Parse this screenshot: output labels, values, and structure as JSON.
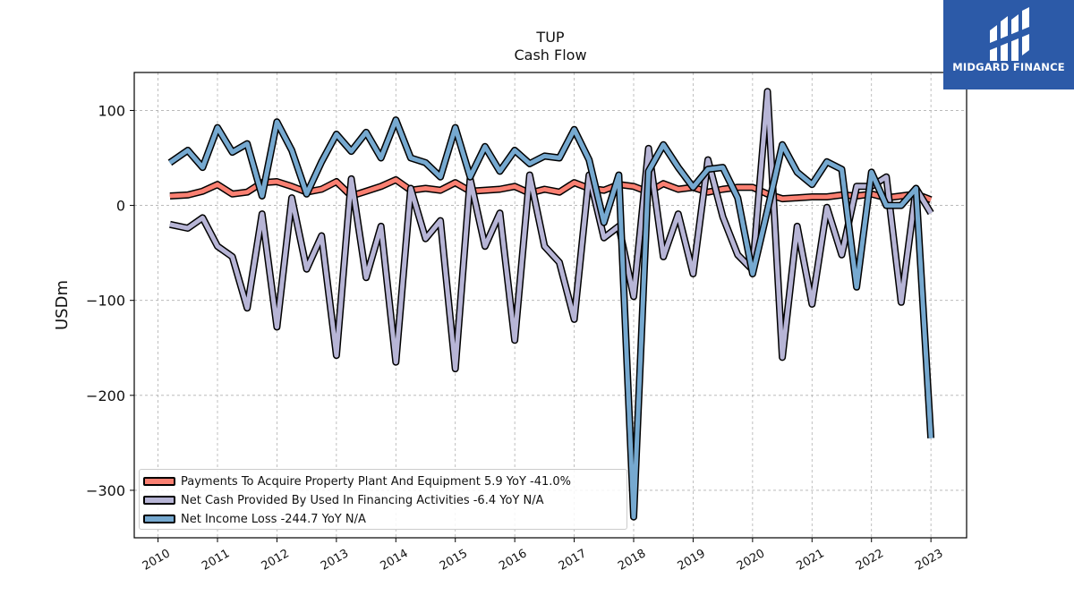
{
  "brand": {
    "name": "MIDGARD FINANCE",
    "color": "#2c5aa8"
  },
  "chart_data": {
    "type": "line",
    "title": "TUP",
    "subtitle": "Cash Flow",
    "xlabel": "",
    "ylabel": "USDm",
    "xlim": [
      2009.6,
      2023.6
    ],
    "ylim": [
      -350,
      140
    ],
    "x_ticks": [
      "2010",
      "2011",
      "2012",
      "2013",
      "2014",
      "2015",
      "2016",
      "2017",
      "2018",
      "2019",
      "2020",
      "2021",
      "2022",
      "2023"
    ],
    "y_ticks": [
      {
        "value": 100,
        "label": "100"
      },
      {
        "value": 0,
        "label": "0"
      },
      {
        "value": -100,
        "label": "−100"
      },
      {
        "value": -200,
        "label": "−200"
      },
      {
        "value": -300,
        "label": "−300"
      }
    ],
    "grid": true,
    "legend_position": "lower-left",
    "series": [
      {
        "name": "Payments To Acquire Property Plant And Equipment",
        "legend_label": "Payments To Acquire Property Plant And Equipment  5.9 YoY -41.0%",
        "color": "#fa8072",
        "points": [
          [
            2010.2,
            10
          ],
          [
            2010.5,
            11
          ],
          [
            2010.75,
            15
          ],
          [
            2011.0,
            22
          ],
          [
            2011.25,
            12
          ],
          [
            2011.5,
            14
          ],
          [
            2011.75,
            24
          ],
          [
            2012.0,
            25
          ],
          [
            2012.25,
            20
          ],
          [
            2012.5,
            14
          ],
          [
            2012.75,
            17
          ],
          [
            2013.0,
            25
          ],
          [
            2013.25,
            10
          ],
          [
            2013.5,
            15
          ],
          [
            2013.75,
            20
          ],
          [
            2014.0,
            27
          ],
          [
            2014.25,
            16
          ],
          [
            2014.5,
            18
          ],
          [
            2014.75,
            16
          ],
          [
            2015.0,
            24
          ],
          [
            2015.25,
            15
          ],
          [
            2015.5,
            16
          ],
          [
            2015.75,
            17
          ],
          [
            2016.0,
            20
          ],
          [
            2016.25,
            13
          ],
          [
            2016.5,
            17
          ],
          [
            2016.75,
            14
          ],
          [
            2017.0,
            24
          ],
          [
            2017.25,
            18
          ],
          [
            2017.5,
            16
          ],
          [
            2017.75,
            22
          ],
          [
            2018.0,
            20
          ],
          [
            2018.25,
            14
          ],
          [
            2018.5,
            23
          ],
          [
            2018.75,
            17
          ],
          [
            2019.0,
            19
          ],
          [
            2019.25,
            14
          ],
          [
            2019.5,
            17
          ],
          [
            2019.75,
            19
          ],
          [
            2020.0,
            19
          ],
          [
            2020.25,
            12
          ],
          [
            2020.5,
            7
          ],
          [
            2020.75,
            8
          ],
          [
            2021.0,
            9
          ],
          [
            2021.25,
            9
          ],
          [
            2021.5,
            11
          ],
          [
            2021.75,
            10
          ],
          [
            2022.0,
            12
          ],
          [
            2022.25,
            8
          ],
          [
            2022.5,
            10
          ],
          [
            2022.75,
            12
          ],
          [
            2023.0,
            6
          ]
        ]
      },
      {
        "name": "Net Cash Provided By Used In Financing Activities",
        "legend_label": "Net Cash Provided By Used In Financing Activities  -6.4 YoY N/A",
        "color": "#b7b5d6",
        "points": [
          [
            2010.2,
            -20
          ],
          [
            2010.5,
            -24
          ],
          [
            2010.75,
            -13
          ],
          [
            2011.0,
            -43
          ],
          [
            2011.25,
            -54
          ],
          [
            2011.5,
            -108
          ],
          [
            2011.75,
            -9
          ],
          [
            2012.0,
            -128
          ],
          [
            2012.25,
            8
          ],
          [
            2012.5,
            -67
          ],
          [
            2012.75,
            -32
          ],
          [
            2013.0,
            -158
          ],
          [
            2013.25,
            28
          ],
          [
            2013.5,
            -76
          ],
          [
            2013.75,
            -22
          ],
          [
            2014.0,
            -165
          ],
          [
            2014.25,
            18
          ],
          [
            2014.5,
            -35
          ],
          [
            2014.75,
            -16
          ],
          [
            2015.0,
            -172
          ],
          [
            2015.25,
            28
          ],
          [
            2015.5,
            -43
          ],
          [
            2015.75,
            -8
          ],
          [
            2016.0,
            -142
          ],
          [
            2016.25,
            32
          ],
          [
            2016.5,
            -43
          ],
          [
            2016.75,
            -60
          ],
          [
            2017.0,
            -120
          ],
          [
            2017.25,
            32
          ],
          [
            2017.5,
            -34
          ],
          [
            2017.75,
            -22
          ],
          [
            2018.0,
            -96
          ],
          [
            2018.25,
            60
          ],
          [
            2018.5,
            -54
          ],
          [
            2018.75,
            -9
          ],
          [
            2019.0,
            -72
          ],
          [
            2019.25,
            48
          ],
          [
            2019.5,
            -12
          ],
          [
            2019.75,
            -52
          ],
          [
            2020.0,
            -68
          ],
          [
            2020.25,
            120
          ],
          [
            2020.5,
            -160
          ],
          [
            2020.75,
            -22
          ],
          [
            2021.0,
            -104
          ],
          [
            2021.25,
            -2
          ],
          [
            2021.5,
            -52
          ],
          [
            2021.75,
            20
          ],
          [
            2022.0,
            20
          ],
          [
            2022.25,
            30
          ],
          [
            2022.5,
            -102
          ],
          [
            2022.75,
            18
          ],
          [
            2023.0,
            -8
          ]
        ]
      },
      {
        "name": "Net Income Loss",
        "legend_label": "Net Income Loss  -244.7 YoY N/A",
        "color": "#76a9d0",
        "points": [
          [
            2010.2,
            45
          ],
          [
            2010.5,
            58
          ],
          [
            2010.75,
            40
          ],
          [
            2011.0,
            82
          ],
          [
            2011.25,
            56
          ],
          [
            2011.5,
            65
          ],
          [
            2011.75,
            10
          ],
          [
            2012.0,
            88
          ],
          [
            2012.25,
            58
          ],
          [
            2012.5,
            12
          ],
          [
            2012.75,
            46
          ],
          [
            2013.0,
            75
          ],
          [
            2013.25,
            57
          ],
          [
            2013.5,
            77
          ],
          [
            2013.75,
            50
          ],
          [
            2014.0,
            90
          ],
          [
            2014.25,
            50
          ],
          [
            2014.5,
            45
          ],
          [
            2014.75,
            30
          ],
          [
            2015.0,
            82
          ],
          [
            2015.25,
            30
          ],
          [
            2015.5,
            62
          ],
          [
            2015.75,
            36
          ],
          [
            2016.0,
            58
          ],
          [
            2016.25,
            44
          ],
          [
            2016.5,
            52
          ],
          [
            2016.75,
            50
          ],
          [
            2017.0,
            80
          ],
          [
            2017.25,
            48
          ],
          [
            2017.5,
            -18
          ],
          [
            2017.75,
            32
          ],
          [
            2018.0,
            -328
          ],
          [
            2018.25,
            36
          ],
          [
            2018.5,
            64
          ],
          [
            2018.75,
            40
          ],
          [
            2019.0,
            19
          ],
          [
            2019.25,
            38
          ],
          [
            2019.5,
            40
          ],
          [
            2019.75,
            8
          ],
          [
            2020.0,
            -72
          ],
          [
            2020.25,
            -5
          ],
          [
            2020.5,
            64
          ],
          [
            2020.75,
            35
          ],
          [
            2021.0,
            22
          ],
          [
            2021.25,
            46
          ],
          [
            2021.5,
            38
          ],
          [
            2021.75,
            -86
          ],
          [
            2022.0,
            35
          ],
          [
            2022.25,
            0
          ],
          [
            2022.5,
            0
          ],
          [
            2022.75,
            18
          ],
          [
            2023.0,
            -245
          ]
        ]
      }
    ]
  }
}
